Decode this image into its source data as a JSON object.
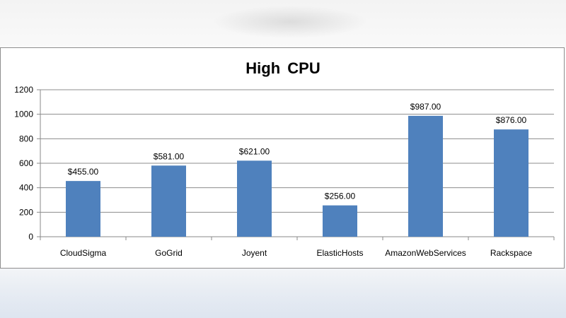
{
  "chart_data": {
    "type": "bar",
    "title": "High  CPU",
    "categories": [
      "CloudSigma",
      "GoGrid",
      "Joyent",
      "ElasticHosts",
      "AmazonWebServices",
      "Rackspace"
    ],
    "values": [
      455,
      581,
      621,
      256,
      987,
      876
    ],
    "data_labels": [
      "$455.00",
      "$581.00",
      "$621.00",
      "$256.00",
      "$987.00",
      "$876.00"
    ],
    "ylim": [
      0,
      1200
    ],
    "yticks": [
      0,
      200,
      400,
      600,
      800,
      1000,
      1200
    ],
    "xlabel": "",
    "ylabel": "",
    "grid": true,
    "legend": "none",
    "bar_color": "#4f81bd",
    "grid_color": "#8c8c8c"
  }
}
